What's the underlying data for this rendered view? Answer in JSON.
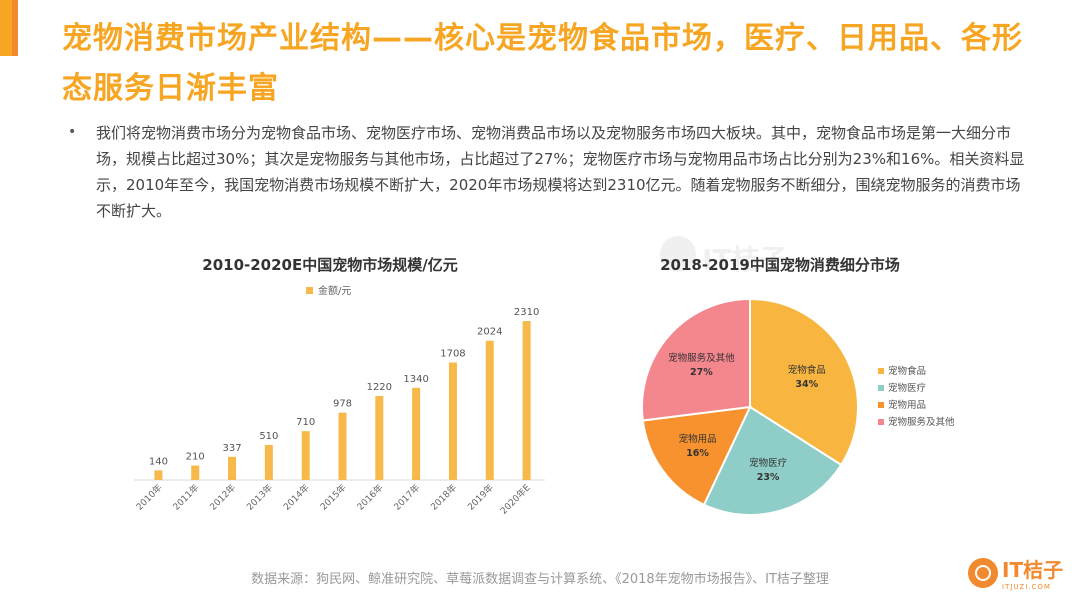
{
  "slide": {
    "title": "宠物消费市场产业结构——核心是宠物食品市场，医疗、日用品、各形态服务日渐丰富",
    "bullet": "•",
    "paragraph": "我们将宠物消费市场分为宠物食品市场、宠物医疗市场、宠物消费品市场以及宠物服务市场四大板块。其中，宠物食品市场是第一大细分市场，规模占比超过30%；其次是宠物服务与其他市场，占比超过了27%；宠物医疗市场与宠物用品市场占比分别为23%和16%。相关资料显示，2010年至今，我国宠物消费市场规模不断扩大，2020年市场规模将达到2310亿元。随着宠物服务不断细分，围绕宠物服务的消费市场不断扩大。",
    "source": "数据来源：狗民网、鲸准研究院、草莓派数据调查与计算系统、《2018年宠物市场报告》、IT桔子整理",
    "logo_text": "IT桔子",
    "logo_sub": "ITJUZI.COM",
    "watermark_text": "IT桔子"
  },
  "chart_data": [
    {
      "type": "bar",
      "title": "2010-2020E中国宠物市场规模/亿元",
      "legend": "金额/元",
      "legend_position": "top",
      "categories": [
        "2010年",
        "2011年",
        "2012年",
        "2013年",
        "2014年",
        "2015年",
        "2016年",
        "2017年",
        "2018年",
        "2019年",
        "2020年E"
      ],
      "values": [
        140,
        210,
        337,
        510,
        710,
        978,
        1220,
        1340,
        1708,
        2024,
        2310
      ],
      "color": "#f6b94a",
      "ylim": [
        0,
        2500
      ],
      "grid": false
    },
    {
      "type": "pie",
      "title": "2018-2019中国宠物消费细分市场",
      "legend_position": "right",
      "slices": [
        {
          "label": "宠物食品",
          "value": 34,
          "display": "34%",
          "color": "#f8b640"
        },
        {
          "label": "宠物医疗",
          "value": 23,
          "display": "23%",
          "color": "#8ecdc8"
        },
        {
          "label": "宠物用品",
          "value": 16,
          "display": "16%",
          "color": "#f7922e"
        },
        {
          "label": "宠物服务及其他",
          "value": 27,
          "display": "27%",
          "color": "#f4868e"
        }
      ]
    }
  ]
}
